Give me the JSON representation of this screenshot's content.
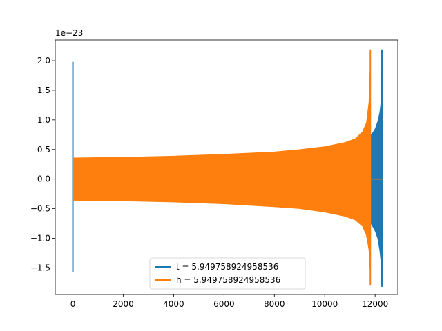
{
  "chart_data": {
    "type": "line",
    "title": "",
    "xlabel": "",
    "ylabel": "",
    "y_offset_label": "1e−23",
    "xlim": [
      -700,
      12900
    ],
    "ylim": [
      -1.95,
      2.35
    ],
    "x_ticks": [
      0,
      2000,
      4000,
      6000,
      8000,
      10000,
      12000
    ],
    "x_tick_labels": [
      "0",
      "2000",
      "4000",
      "6000",
      "8000",
      "10000",
      "12000"
    ],
    "y_ticks": [
      -1.5,
      -1.0,
      -0.5,
      0.0,
      0.5,
      1.0,
      1.5,
      2.0
    ],
    "y_tick_labels": [
      "−1.5",
      "−1.0",
      "−0.5",
      "0.0",
      "0.5",
      "1.0",
      "1.5",
      "2.0"
    ],
    "grid": false,
    "legend_position": "bottom-center",
    "series": [
      {
        "name": "t = 5.949758924958536",
        "color": "#1f77b4",
        "spike": {
          "x": 0,
          "upper": 1.98,
          "lower": -1.57
        },
        "envelope": [
          {
            "x": 11830,
            "upper": 0.75,
            "lower": -0.75
          },
          {
            "x": 11900,
            "upper": 0.78,
            "lower": -0.8
          },
          {
            "x": 12000,
            "upper": 0.85,
            "lower": -0.88
          },
          {
            "x": 12100,
            "upper": 0.97,
            "lower": -1.0
          },
          {
            "x": 12180,
            "upper": 1.12,
            "lower": -1.2
          },
          {
            "x": 12230,
            "upper": 1.3,
            "lower": -1.4
          },
          {
            "x": 12260,
            "upper": 1.88,
            "lower": -1.8
          }
        ],
        "peak": {
          "x": 12270,
          "upper": 2.19,
          "lower": -1.82
        }
      },
      {
        "name": "h = 5.949758924958536",
        "color": "#ff7f0e",
        "envelope": [
          {
            "x": 0,
            "upper": 0.36,
            "lower": -0.36
          },
          {
            "x": 2000,
            "upper": 0.37,
            "lower": -0.37
          },
          {
            "x": 4000,
            "upper": 0.39,
            "lower": -0.39
          },
          {
            "x": 6000,
            "upper": 0.42,
            "lower": -0.42
          },
          {
            "x": 8000,
            "upper": 0.46,
            "lower": -0.47
          },
          {
            "x": 9000,
            "upper": 0.5,
            "lower": -0.5
          },
          {
            "x": 10000,
            "upper": 0.55,
            "lower": -0.56
          },
          {
            "x": 10800,
            "upper": 0.62,
            "lower": -0.63
          },
          {
            "x": 11200,
            "upper": 0.68,
            "lower": -0.69
          },
          {
            "x": 11500,
            "upper": 0.8,
            "lower": -0.8
          },
          {
            "x": 11650,
            "upper": 0.95,
            "lower": -0.95
          },
          {
            "x": 11750,
            "upper": 1.3,
            "lower": -1.2
          },
          {
            "x": 11790,
            "upper": 1.8,
            "lower": -1.5
          }
        ],
        "peak": {
          "x": 11810,
          "upper": 2.19,
          "lower": -1.8
        },
        "tail": {
          "x_start": 11850,
          "x_end": 12300,
          "y": 0.0
        }
      }
    ]
  }
}
